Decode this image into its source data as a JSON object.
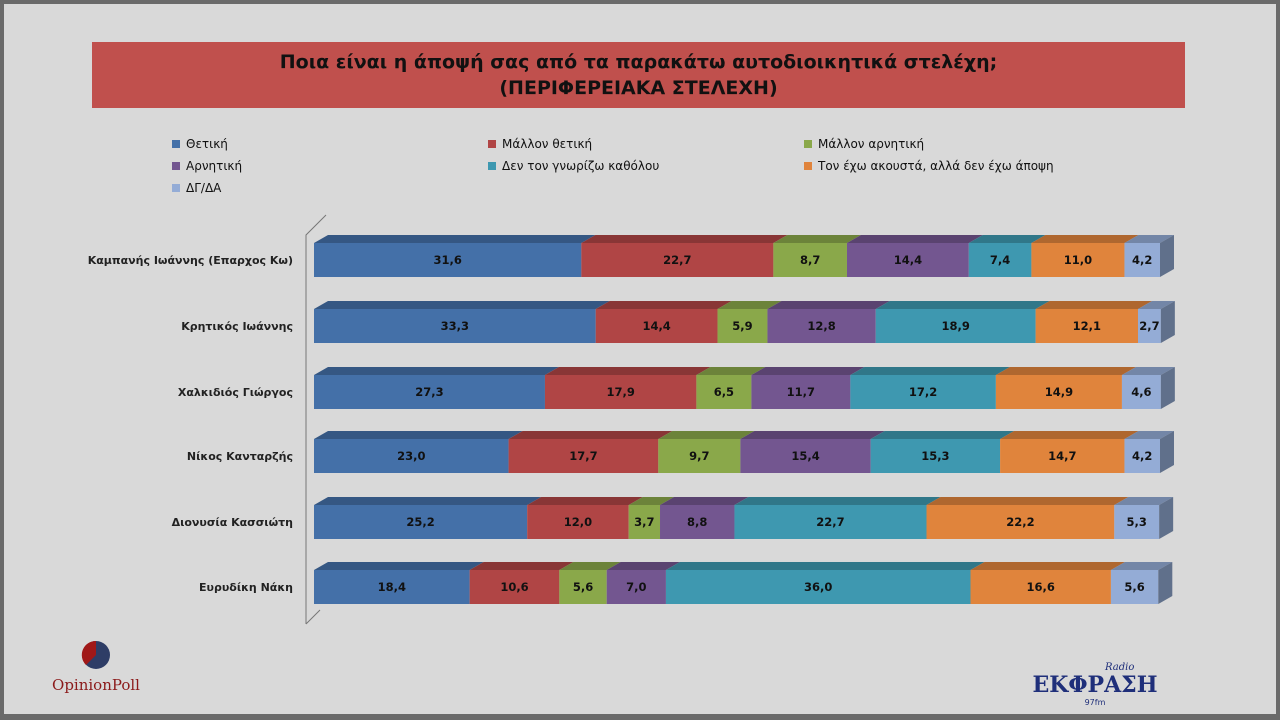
{
  "chart_data": {
    "type": "bar",
    "stacked": true,
    "orientation": "horizontal",
    "title": "Ποια είναι η άποψή σας από τα παρακάτω αυτοδιοικητικά στελέχη;",
    "subtitle": "(ΠΕΡΙΦΕΡΕΙΑΚΑ ΣΤΕΛΕΧΗ)",
    "legend_position": "top",
    "grid": false,
    "xlim": [
      0,
      100
    ],
    "categories": [
      "Καμπανής Ιωάννης (Επαρχος Κω)",
      "Κρητικός Ιωάννης",
      "Χαλκιδιός Γιώργος",
      "Νίκος Κανταρζής",
      "Διονυσία Κασσιώτη",
      "Ευρυδίκη Νάκη"
    ],
    "series": [
      {
        "name": "Θετική",
        "color": "#4470a8",
        "values": [
          31.6,
          33.3,
          27.3,
          23.0,
          25.2,
          18.4
        ]
      },
      {
        "name": "Μάλλον θετική",
        "color": "#b04545",
        "values": [
          22.7,
          14.4,
          17.9,
          17.7,
          12.0,
          10.6
        ]
      },
      {
        "name": "Μάλλον αρνητική",
        "color": "#8aa84a",
        "values": [
          8.7,
          5.9,
          6.5,
          9.7,
          3.7,
          5.6
        ]
      },
      {
        "name": "Αρνητική",
        "color": "#735690",
        "values": [
          14.4,
          12.8,
          11.7,
          15.4,
          8.8,
          7.0
        ]
      },
      {
        "name": "Δεν τον γνωρίζω καθόλου",
        "color": "#3e98b0",
        "values": [
          7.4,
          18.9,
          17.2,
          15.3,
          22.7,
          36.0
        ]
      },
      {
        "name": "Τον έχω ακουστά, αλλά δεν έχω άποψη",
        "color": "#e0843c",
        "values": [
          11.0,
          12.1,
          14.9,
          14.7,
          22.2,
          16.6
        ]
      },
      {
        "name": "ΔΓ/ΔΑ",
        "color": "#94acd6",
        "values": [
          4.2,
          2.7,
          4.6,
          4.2,
          5.3,
          5.6
        ]
      }
    ]
  },
  "logos": {
    "left": "OpinionPoll",
    "right_small": "Radio",
    "right": "ΕΚΦΡΑΣΗ",
    "right_freq": "97fm"
  }
}
